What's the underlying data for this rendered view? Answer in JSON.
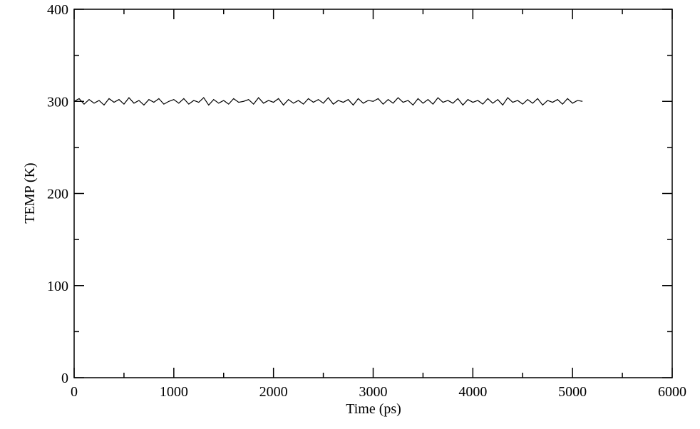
{
  "chart_data": {
    "type": "line",
    "xlabel": "Time (ps)",
    "ylabel": "TEMP (K)",
    "xlim": [
      0,
      6000
    ],
    "ylim": [
      0,
      400
    ],
    "xticks": [
      0,
      1000,
      2000,
      3000,
      4000,
      5000,
      6000
    ],
    "yticks": [
      0,
      100,
      200,
      300,
      400
    ],
    "xminorticks": [
      500,
      1500,
      2500,
      3500,
      4500,
      5500
    ],
    "yminorticks": [
      50,
      150,
      250,
      350
    ],
    "x": [
      0,
      50,
      100,
      150,
      200,
      250,
      300,
      350,
      400,
      450,
      500,
      550,
      600,
      650,
      700,
      750,
      800,
      850,
      900,
      950,
      1000,
      1050,
      1100,
      1150,
      1200,
      1250,
      1300,
      1350,
      1400,
      1450,
      1500,
      1550,
      1600,
      1650,
      1700,
      1750,
      1800,
      1850,
      1900,
      1950,
      2000,
      2050,
      2100,
      2150,
      2200,
      2250,
      2300,
      2350,
      2400,
      2450,
      2500,
      2550,
      2600,
      2650,
      2700,
      2750,
      2800,
      2850,
      2900,
      2950,
      3000,
      3050,
      3100,
      3150,
      3200,
      3250,
      3300,
      3350,
      3400,
      3450,
      3500,
      3550,
      3600,
      3650,
      3700,
      3750,
      3800,
      3850,
      3900,
      3950,
      4000,
      4050,
      4100,
      4150,
      4200,
      4250,
      4300,
      4350,
      4400,
      4450,
      4500,
      4550,
      4600,
      4650,
      4700,
      4750,
      4800,
      4850,
      4900,
      4950,
      5000,
      5050,
      5100
    ],
    "series": [
      {
        "color": "#000000",
        "values": [
          300,
          303,
          297,
          302,
          298,
          301,
          296,
          303,
          299,
          302,
          297,
          304,
          298,
          301,
          296,
          302,
          299,
          303,
          297,
          300,
          302,
          298,
          303,
          297,
          301,
          299,
          304,
          296,
          302,
          298,
          301,
          297,
          303,
          299,
          300,
          302,
          297,
          304,
          298,
          301,
          299,
          303,
          296,
          302,
          298,
          301,
          297,
          303,
          299,
          302,
          298,
          304,
          297,
          301,
          299,
          302,
          296,
          303,
          298,
          301,
          300,
          303,
          297,
          302,
          298,
          304,
          299,
          301,
          296,
          303,
          298,
          302,
          297,
          304,
          299,
          301,
          298,
          303,
          296,
          302,
          299,
          301,
          297,
          303,
          298,
          302,
          296,
          304,
          299,
          301,
          297,
          302,
          298,
          303,
          296,
          301,
          299,
          302,
          297,
          303,
          298,
          301,
          300
        ]
      }
    ]
  }
}
